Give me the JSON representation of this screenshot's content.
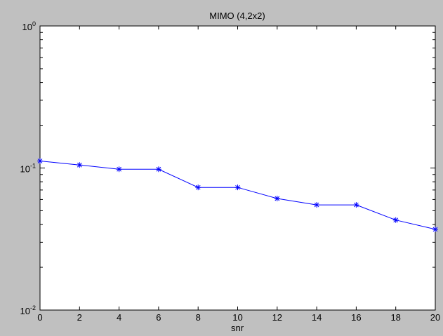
{
  "chart_data": {
    "type": "line",
    "title": "MIMO (4,2x2)",
    "xlabel": "snr",
    "ylabel": "",
    "xlim": [
      0,
      20
    ],
    "ylim": [
      0.01,
      1
    ],
    "yscale": "log",
    "grid": false,
    "x_ticks": [
      "0",
      "2",
      "4",
      "6",
      "8",
      "10",
      "12",
      "14",
      "16",
      "18",
      "20"
    ],
    "y_ticks": [
      {
        "base": "10",
        "exp": "0"
      },
      {
        "base": "10",
        "exp": "-1"
      },
      {
        "base": "10",
        "exp": "-2"
      }
    ],
    "series": [
      {
        "color": "#0000ff",
        "marker": "star",
        "x": [
          0,
          2,
          4,
          6,
          8,
          10,
          12,
          14,
          16,
          18,
          20
        ],
        "y": [
          0.112,
          0.105,
          0.098,
          0.098,
          0.073,
          0.073,
          0.061,
          0.055,
          0.055,
          0.043,
          0.037
        ]
      }
    ]
  }
}
